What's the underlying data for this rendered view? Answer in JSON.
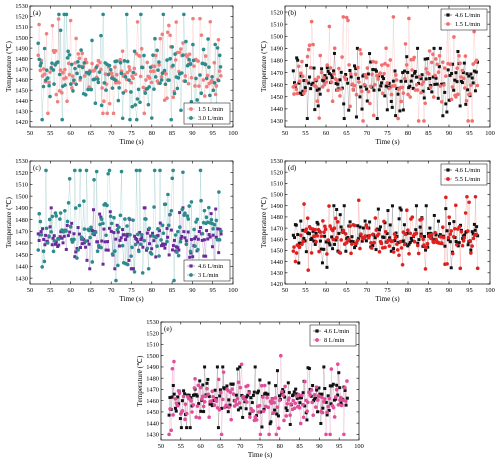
{
  "chart_data": [
    {
      "type": "scatter",
      "panel_label": "(a)",
      "xlabel": "Time (s)",
      "ylabel": "Temperature (℃)",
      "xlim": [
        50,
        100
      ],
      "ylim": [
        1415,
        1530
      ],
      "xticks": [
        50,
        55,
        60,
        65,
        70,
        75,
        80,
        85,
        90,
        95,
        100
      ],
      "yticks": [
        1420,
        1430,
        1440,
        1450,
        1460,
        1470,
        1480,
        1490,
        1500,
        1510,
        1520,
        1530
      ],
      "legend_position": "bottom-right",
      "grid": false,
      "series": [
        {
          "name": "1.5 L/min",
          "color": "#f08080",
          "marker": "circle",
          "x_range": [
            52,
            97
          ],
          "y_mean": 1465,
          "y_spread": 25,
          "y_min": 1428,
          "y_max": 1518
        },
        {
          "name": "3.0 L/min",
          "color": "#2e8b8b",
          "marker": "circle",
          "x_range": [
            52,
            97
          ],
          "y_mean": 1465,
          "y_spread": 32,
          "y_min": 1422,
          "y_max": 1522
        }
      ]
    },
    {
      "type": "scatter",
      "panel_label": "(b)",
      "xlabel": "Time (s)",
      "ylabel": "Temperature (℃)",
      "xlim": [
        50,
        100
      ],
      "ylim": [
        1425,
        1525
      ],
      "xticks": [
        50,
        55,
        60,
        65,
        70,
        75,
        80,
        85,
        90,
        95,
        100
      ],
      "yticks": [
        1430,
        1440,
        1450,
        1460,
        1470,
        1480,
        1490,
        1500,
        1510,
        1520
      ],
      "legend_position": "top-right",
      "grid": false,
      "series": [
        {
          "name": "4.6 L/min",
          "color": "#111111",
          "marker": "square",
          "x_range": [
            52,
            97
          ],
          "y_mean": 1463,
          "y_spread": 16,
          "y_min": 1432,
          "y_max": 1490
        },
        {
          "name": "1.5 L/min",
          "color": "#f07070",
          "marker": "circle",
          "x_range": [
            52,
            97
          ],
          "y_mean": 1466,
          "y_spread": 24,
          "y_min": 1430,
          "y_max": 1516
        }
      ]
    },
    {
      "type": "scatter",
      "panel_label": "(c)",
      "xlabel": "Time (s)",
      "ylabel": "Temperature (℃)",
      "xlim": [
        50,
        100
      ],
      "ylim": [
        1425,
        1530
      ],
      "xticks": [
        50,
        55,
        60,
        65,
        70,
        75,
        80,
        85,
        90,
        95,
        100
      ],
      "yticks": [
        1430,
        1440,
        1450,
        1460,
        1470,
        1480,
        1490,
        1500,
        1510,
        1520,
        1530
      ],
      "legend_position": "bottom-right",
      "grid": false,
      "series": [
        {
          "name": "4.6 L/min",
          "color": "#6a2a9a",
          "marker": "square",
          "x_range": [
            52,
            97
          ],
          "y_mean": 1463,
          "y_spread": 15,
          "y_min": 1438,
          "y_max": 1490
        },
        {
          "name": "3 L/min",
          "color": "#2e8b8b",
          "marker": "circle",
          "x_range": [
            52,
            97
          ],
          "y_mean": 1470,
          "y_spread": 30,
          "y_min": 1428,
          "y_max": 1522
        }
      ]
    },
    {
      "type": "scatter",
      "panel_label": "(d)",
      "xlabel": "Time (s)",
      "ylabel": "Temperature (℃)",
      "xlim": [
        50,
        100
      ],
      "ylim": [
        1420,
        1530
      ],
      "xticks": [
        50,
        55,
        60,
        65,
        70,
        75,
        80,
        85,
        90,
        95,
        100
      ],
      "yticks": [
        1420,
        1430,
        1440,
        1450,
        1460,
        1470,
        1480,
        1490,
        1500,
        1510,
        1520,
        1530
      ],
      "legend_position": "top-right",
      "grid": false,
      "series": [
        {
          "name": "4.6 L/min",
          "color": "#111111",
          "marker": "square",
          "x_range": [
            52,
            97
          ],
          "y_mean": 1462,
          "y_spread": 14,
          "y_min": 1432,
          "y_max": 1490
        },
        {
          "name": "5.5 L/min",
          "color": "#e02020",
          "marker": "circle",
          "x_range": [
            52,
            97
          ],
          "y_mean": 1462,
          "y_spread": 17,
          "y_min": 1428,
          "y_max": 1498
        }
      ]
    },
    {
      "type": "scatter",
      "panel_label": "(e)",
      "xlabel": "Time (s)",
      "ylabel": "Temperature (℃)",
      "xlim": [
        50,
        100
      ],
      "ylim": [
        1425,
        1530
      ],
      "xticks": [
        50,
        55,
        60,
        65,
        70,
        75,
        80,
        85,
        90,
        95,
        100
      ],
      "yticks": [
        1430,
        1440,
        1450,
        1460,
        1470,
        1480,
        1490,
        1500,
        1510,
        1520,
        1530
      ],
      "legend_position": "top-right",
      "grid": false,
      "series": [
        {
          "name": "4.6 L/min",
          "color": "#111111",
          "marker": "square",
          "x_range": [
            52,
            97
          ],
          "y_mean": 1463,
          "y_spread": 14,
          "y_min": 1436,
          "y_max": 1490
        },
        {
          "name": "8 L/min",
          "color": "#e0509a",
          "marker": "circle",
          "x_range": [
            52,
            97
          ],
          "y_mean": 1460,
          "y_spread": 18,
          "y_min": 1430,
          "y_max": 1508
        }
      ]
    }
  ]
}
